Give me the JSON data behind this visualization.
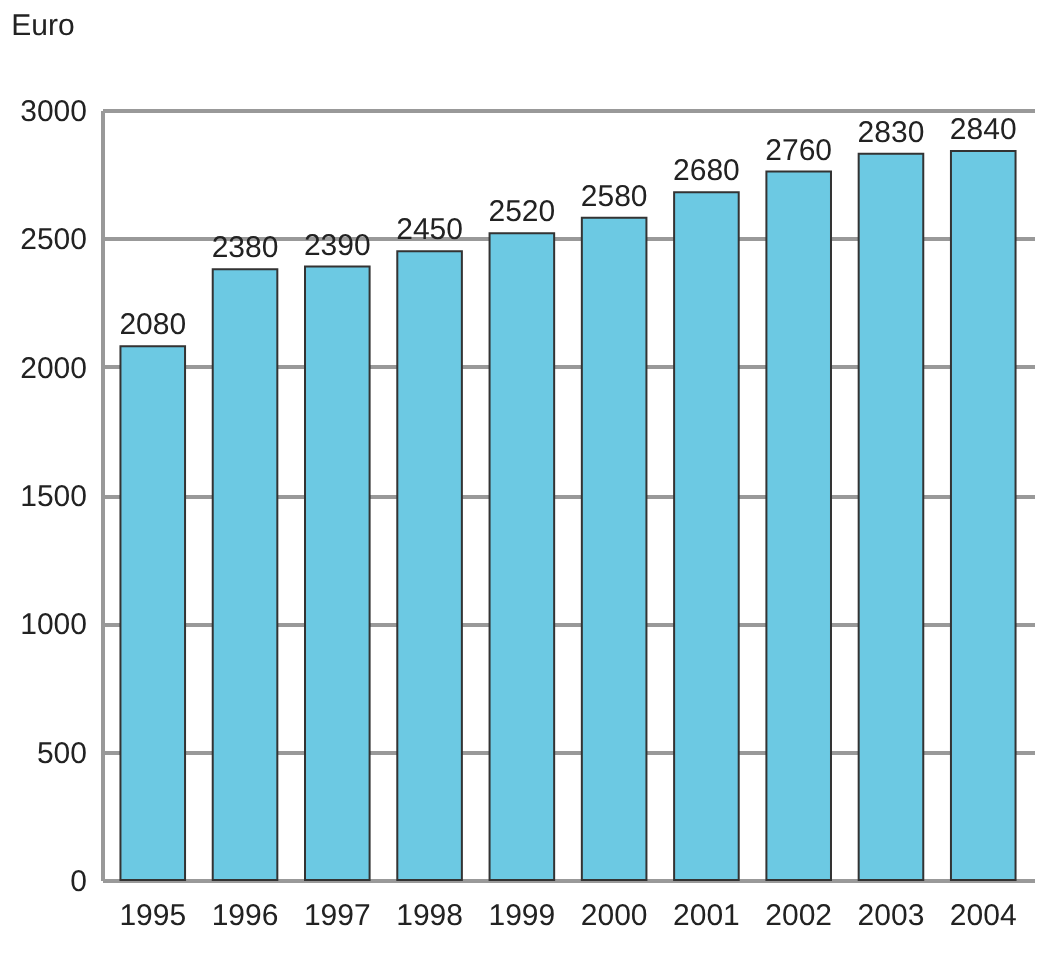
{
  "chart_data": {
    "type": "bar",
    "ylabel": "Euro",
    "categories": [
      "1995",
      "1996",
      "1997",
      "1998",
      "1999",
      "2000",
      "2001",
      "2002",
      "2003",
      "2004"
    ],
    "values": [
      2080,
      2380,
      2390,
      2450,
      2520,
      2580,
      2680,
      2760,
      2830,
      2840
    ],
    "color": "#6cc9e3",
    "ylim": [
      0,
      3000
    ],
    "yticks": [
      0,
      500,
      1000,
      1500,
      2000,
      2500,
      3000
    ],
    "grid": "y",
    "data_labels": true
  }
}
